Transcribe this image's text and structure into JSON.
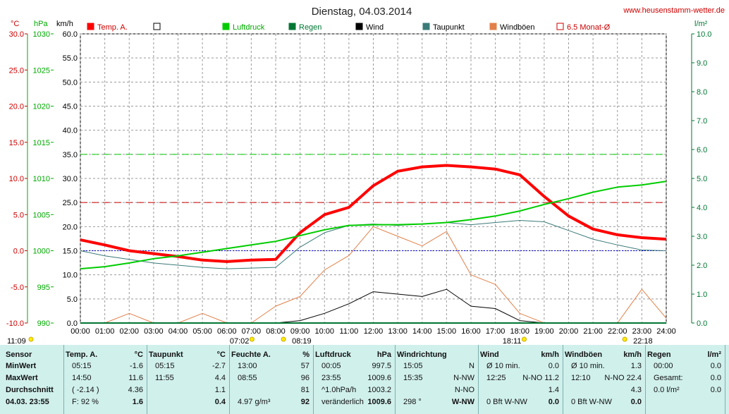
{
  "header": {
    "title": "Dienstag, 04.03.2014",
    "site": "www.heusenstamm-wetter.de"
  },
  "axis_units": {
    "temp": "°C",
    "pressure": "hPa",
    "speed": "km/h",
    "rain": "l/m²"
  },
  "legend": [
    {
      "label": "Temp. A.",
      "color": "#ff0000",
      "style": "filled"
    },
    {
      "label": "",
      "color": "#000000",
      "style": "outline"
    },
    {
      "label": "Luftdruck",
      "color": "#00cc00",
      "style": "filled"
    },
    {
      "label": "Regen",
      "color": "#007733",
      "style": "filled"
    },
    {
      "label": "Wind",
      "color": "#000000",
      "style": "filled"
    },
    {
      "label": "Taupunkt",
      "color": "#3a7a78",
      "style": "filled"
    },
    {
      "label": "Windböen",
      "color": "#e2804a",
      "style": "filled"
    },
    {
      "label": "6.5 Monat-Ø",
      "color": "#cc0000",
      "style": "outline"
    }
  ],
  "chart_data": {
    "type": "line",
    "x": [
      "00:00",
      "01:00",
      "02:00",
      "03:00",
      "04:00",
      "05:00",
      "06:00",
      "07:00",
      "08:00",
      "09:00",
      "10:00",
      "11:00",
      "12:00",
      "13:00",
      "14:00",
      "15:00",
      "16:00",
      "17:00",
      "18:00",
      "19:00",
      "20:00",
      "21:00",
      "22:00",
      "23:00",
      "24:00"
    ],
    "y_axes": {
      "temp": {
        "ticks": [
          "30.0",
          "25.0",
          "20.0",
          "15.0",
          "10.0",
          "5.0",
          "0.0",
          "-5.0",
          "-10.0"
        ],
        "ylim": [
          -10,
          30
        ]
      },
      "pressure": {
        "ticks": [
          "1030",
          "1025",
          "1020",
          "1015",
          "1010",
          "1005",
          "1000",
          "995",
          "990"
        ],
        "ylim": [
          990,
          1030
        ]
      },
      "speed": {
        "ticks": [
          "60.0",
          "55.0",
          "50.0",
          "45.0",
          "40.0",
          "35.0",
          "30.0",
          "25.0",
          "20.0",
          "15.0",
          "10.0",
          "5.0",
          "0.0"
        ],
        "ylim": [
          0,
          60
        ]
      },
      "rain": {
        "ticks": [
          "10.0",
          "9.0",
          "8.0",
          "7.0",
          "6.0",
          "5.0",
          "4.0",
          "3.0",
          "2.0",
          "1.0",
          "0.0"
        ],
        "ylim": [
          0,
          10
        ]
      }
    },
    "series": [
      {
        "name": "Temp. A.",
        "axis": "temp",
        "values": [
          1.5,
          0.8,
          0.0,
          -0.4,
          -0.8,
          -1.3,
          -1.5,
          -1.3,
          -1.2,
          2.5,
          5.0,
          6.0,
          9.0,
          11.0,
          11.6,
          11.8,
          11.6,
          11.3,
          10.5,
          7.5,
          4.8,
          3.0,
          2.2,
          1.8,
          1.6
        ]
      },
      {
        "name": "Taupunkt",
        "axis": "temp",
        "values": [
          0.0,
          -0.7,
          -1.2,
          -1.7,
          -2.0,
          -2.3,
          -2.5,
          -2.4,
          -2.3,
          0.5,
          2.5,
          3.5,
          3.7,
          3.5,
          3.7,
          3.9,
          3.6,
          3.9,
          4.2,
          4.0,
          2.8,
          1.6,
          0.8,
          0.1,
          0.0
        ]
      },
      {
        "name": "Luftdruck",
        "axis": "pressure",
        "values": [
          997.5,
          997.8,
          998.3,
          998.9,
          999.3,
          999.8,
          1000.3,
          1000.8,
          1001.3,
          1002.1,
          1002.9,
          1003.5,
          1003.6,
          1003.6,
          1003.7,
          1003.9,
          1004.3,
          1004.8,
          1005.5,
          1006.4,
          1007.2,
          1008.1,
          1008.8,
          1009.1,
          1009.6
        ]
      },
      {
        "name": "Wind",
        "axis": "speed",
        "values": [
          0,
          0,
          0,
          0,
          0,
          0,
          0,
          0,
          0,
          0.5,
          2.0,
          4.0,
          6.5,
          6.0,
          5.5,
          7.0,
          3.5,
          3.0,
          0.5,
          0,
          0,
          0,
          0,
          0,
          0
        ]
      },
      {
        "name": "Windböen",
        "axis": "speed",
        "values": [
          0,
          0,
          2.0,
          0,
          0,
          2.0,
          0,
          0,
          3.5,
          5.5,
          11.0,
          14.0,
          20.0,
          18.0,
          16.0,
          19.0,
          10.0,
          8.0,
          2.0,
          0,
          0,
          0,
          0,
          7.0,
          1.0
        ]
      },
      {
        "name": "Regen",
        "axis": "rain",
        "values": [
          0,
          0,
          0,
          0,
          0,
          0,
          0,
          0,
          0,
          0,
          0,
          0,
          0,
          0,
          0,
          0,
          0,
          0,
          0,
          0,
          0,
          0,
          0,
          0,
          0
        ]
      }
    ],
    "reference_lines": [
      {
        "name": "temp-ref-25",
        "axis": "speed",
        "value": 25.0,
        "color": "#cc0000",
        "dash": "dashed"
      },
      {
        "name": "pressure-ref-35",
        "axis": "speed",
        "value": 35.0,
        "color": "#00cc00",
        "dash": "dashed"
      },
      {
        "name": "zero-ref-15",
        "axis": "speed",
        "value": 15.0,
        "color": "#0000cc",
        "dash": "dotted"
      }
    ],
    "sun_markers": [
      {
        "label": "11:09",
        "x": 0
      },
      {
        "label": "07:02",
        "x": 7.03
      },
      {
        "label": "08:19",
        "x": 8.32
      },
      {
        "label": "18:11",
        "x": 18.18
      },
      {
        "label": "22:18",
        "x": 22.3
      }
    ],
    "grid": true
  },
  "table": {
    "columns": [
      {
        "header": "Sensor",
        "unit": "",
        "rows": [
          "MinWert",
          "MaxWert",
          "Durchschnitt",
          "04.03. 23:55"
        ]
      },
      {
        "header": "Temp. A.",
        "unit": "°C",
        "rows": [
          [
            "05:15",
            "-1.6"
          ],
          [
            "14:50",
            "11.6"
          ],
          [
            "( -2.14 )",
            "4.36"
          ],
          [
            "F: 92 %",
            "1.6"
          ]
        ]
      },
      {
        "header": "Taupunkt",
        "unit": "°C",
        "rows": [
          [
            "05:15",
            "-2.7"
          ],
          [
            "11:55",
            "4.4"
          ],
          [
            "",
            "1.1"
          ],
          [
            "",
            "0.4"
          ]
        ]
      },
      {
        "header": "Feuchte A.",
        "unit": "%",
        "rows": [
          [
            "13:00",
            "57"
          ],
          [
            "08:55",
            "96"
          ],
          [
            "",
            "81"
          ],
          [
            "4.97 g/m³",
            "92"
          ]
        ]
      },
      {
        "header": "Luftdruck",
        "unit": "hPa",
        "rows": [
          [
            "00:05",
            "997.5"
          ],
          [
            "23:55",
            "1009.6"
          ],
          [
            "^1.0hPa/h",
            "1003.2"
          ],
          [
            "veränderlich",
            "1009.6"
          ]
        ]
      },
      {
        "header": "Windrichtung",
        "unit": "",
        "rows": [
          [
            "15:05",
            "N"
          ],
          [
            "15:35",
            "N-NW"
          ],
          [
            "",
            "N-NO"
          ],
          [
            "298 °",
            "W-NW"
          ]
        ]
      },
      {
        "header": "Wind",
        "unit": "km/h",
        "rows": [
          [
            "Ø 10 min.",
            "0.0"
          ],
          [
            "12:25",
            "N-NO 11.2"
          ],
          [
            "",
            "1.4"
          ],
          [
            "0 Bft W-NW",
            "0.0"
          ]
        ]
      },
      {
        "header": "Windböen",
        "unit": "km/h",
        "rows": [
          [
            "Ø 10 min.",
            "1.3"
          ],
          [
            "12:10",
            "N-NO 22.4"
          ],
          [
            "",
            "4.3"
          ],
          [
            "0 Bft W-NW",
            "0.0"
          ]
        ]
      },
      {
        "header": "Regen",
        "unit": "l/m²",
        "rows": [
          [
            "00:00",
            "0.0"
          ],
          [
            "Gesamt:",
            "0.0"
          ],
          [
            "0.0 l/m²",
            "0.0"
          ],
          [
            "",
            ""
          ]
        ]
      }
    ]
  }
}
